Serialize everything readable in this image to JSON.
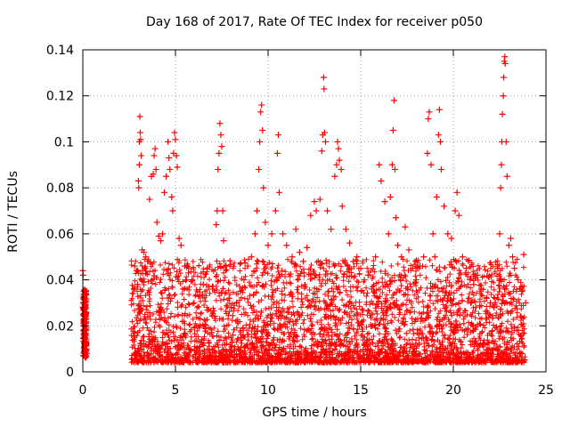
{
  "chart_data": {
    "type": "scatter",
    "title": "Day 168 of 2017, Rate Of TEC Index for receiver p050",
    "xlabel": "GPS time / hours",
    "ylabel": "ROTI / TECUs",
    "xlim": [
      0,
      25
    ],
    "ylim": [
      0,
      0.14
    ],
    "x_ticks": [
      0,
      5,
      10,
      15,
      20,
      25
    ],
    "y_ticks": [
      0,
      0.02,
      0.04,
      0.06,
      0.08,
      0.1,
      0.12,
      0.14
    ],
    "x_tick_labels": [
      "0",
      "5",
      "10",
      "15",
      "20",
      "25"
    ],
    "y_tick_labels": [
      "0",
      "0.02",
      "0.04",
      "0.06",
      "0.08",
      "0.1",
      "0.12",
      "0.14"
    ],
    "grid": true,
    "marker": "+",
    "series": [
      {
        "name": "p050 ROTI",
        "color": "#ff0000",
        "points": [
          [
            0.0,
            0.044
          ],
          [
            0.02,
            0.042
          ],
          [
            0.05,
            0.035
          ],
          [
            0.08,
            0.03
          ],
          [
            0.1,
            0.024
          ],
          [
            0.12,
            0.02
          ],
          [
            0.15,
            0.016
          ],
          [
            0.18,
            0.012
          ],
          [
            0.2,
            0.01
          ],
          [
            0.22,
            0.008
          ],
          [
            0.05,
            0.015
          ],
          [
            0.1,
            0.018
          ],
          [
            0.15,
            0.025
          ],
          [
            0.2,
            0.019
          ],
          [
            0.0,
            0.028
          ],
          [
            0.03,
            0.021
          ],
          [
            2.8,
            0.046
          ],
          [
            2.9,
            0.044
          ],
          [
            2.95,
            0.038
          ],
          [
            3.0,
            0.083
          ],
          [
            3.02,
            0.08
          ],
          [
            3.05,
            0.09
          ],
          [
            3.05,
            0.1
          ],
          [
            3.08,
            0.111
          ],
          [
            3.1,
            0.104
          ],
          [
            3.12,
            0.101
          ],
          [
            3.15,
            0.094
          ],
          [
            3.2,
            0.053
          ],
          [
            3.3,
            0.052
          ],
          [
            3.4,
            0.05
          ],
          [
            3.5,
            0.048
          ],
          [
            3.6,
            0.075
          ],
          [
            3.7,
            0.085
          ],
          [
            3.8,
            0.086
          ],
          [
            3.85,
            0.094
          ],
          [
            3.9,
            0.097
          ],
          [
            3.95,
            0.088
          ],
          [
            4.0,
            0.065
          ],
          [
            4.1,
            0.059
          ],
          [
            4.2,
            0.057
          ],
          [
            4.3,
            0.06
          ],
          [
            4.4,
            0.078
          ],
          [
            4.5,
            0.085
          ],
          [
            4.6,
            0.1
          ],
          [
            4.65,
            0.093
          ],
          [
            4.7,
            0.088
          ],
          [
            4.8,
            0.076
          ],
          [
            4.85,
            0.07
          ],
          [
            4.9,
            0.095
          ],
          [
            4.95,
            0.104
          ],
          [
            5.0,
            0.101
          ],
          [
            5.05,
            0.094
          ],
          [
            5.1,
            0.089
          ],
          [
            5.2,
            0.058
          ],
          [
            5.3,
            0.055
          ],
          [
            5.5,
            0.046
          ],
          [
            5.7,
            0.043
          ],
          [
            5.9,
            0.04
          ],
          [
            6.0,
            0.03
          ],
          [
            6.3,
            0.033
          ],
          [
            6.5,
            0.038
          ],
          [
            6.8,
            0.037
          ],
          [
            7.0,
            0.036
          ],
          [
            7.2,
            0.064
          ],
          [
            7.25,
            0.07
          ],
          [
            7.3,
            0.088
          ],
          [
            7.35,
            0.095
          ],
          [
            7.4,
            0.108
          ],
          [
            7.45,
            0.103
          ],
          [
            7.5,
            0.098
          ],
          [
            7.55,
            0.07
          ],
          [
            7.6,
            0.057
          ],
          [
            7.7,
            0.046
          ],
          [
            7.9,
            0.032
          ],
          [
            8.0,
            0.028
          ],
          [
            8.1,
            0.016
          ],
          [
            8.3,
            0.03
          ],
          [
            8.5,
            0.035
          ],
          [
            8.7,
            0.04
          ],
          [
            8.9,
            0.046
          ],
          [
            9.1,
            0.05
          ],
          [
            9.3,
            0.06
          ],
          [
            9.4,
            0.07
          ],
          [
            9.5,
            0.088
          ],
          [
            9.55,
            0.1
          ],
          [
            9.6,
            0.113
          ],
          [
            9.65,
            0.116
          ],
          [
            9.7,
            0.105
          ],
          [
            9.75,
            0.08
          ],
          [
            9.85,
            0.065
          ],
          [
            10.0,
            0.055
          ],
          [
            10.2,
            0.06
          ],
          [
            10.4,
            0.07
          ],
          [
            10.5,
            0.095
          ],
          [
            10.55,
            0.103
          ],
          [
            10.6,
            0.078
          ],
          [
            10.8,
            0.06
          ],
          [
            11.0,
            0.055
          ],
          [
            11.3,
            0.05
          ],
          [
            11.5,
            0.062
          ],
          [
            11.7,
            0.052
          ],
          [
            11.9,
            0.048
          ],
          [
            12.1,
            0.054
          ],
          [
            12.3,
            0.068
          ],
          [
            12.5,
            0.074
          ],
          [
            12.6,
            0.07
          ],
          [
            12.8,
            0.075
          ],
          [
            12.9,
            0.096
          ],
          [
            12.95,
            0.103
          ],
          [
            13.0,
            0.128
          ],
          [
            13.02,
            0.123
          ],
          [
            13.05,
            0.104
          ],
          [
            13.1,
            0.1
          ],
          [
            13.2,
            0.07
          ],
          [
            13.4,
            0.062
          ],
          [
            13.6,
            0.085
          ],
          [
            13.7,
            0.09
          ],
          [
            13.75,
            0.1
          ],
          [
            13.8,
            0.097
          ],
          [
            13.85,
            0.092
          ],
          [
            13.95,
            0.088
          ],
          [
            14.0,
            0.072
          ],
          [
            14.2,
            0.062
          ],
          [
            14.4,
            0.056
          ],
          [
            14.6,
            0.048
          ],
          [
            14.8,
            0.05
          ],
          [
            15.0,
            0.045
          ],
          [
            15.2,
            0.04
          ],
          [
            15.4,
            0.042
          ],
          [
            15.6,
            0.036
          ],
          [
            15.8,
            0.05
          ],
          [
            16.0,
            0.09
          ],
          [
            16.1,
            0.083
          ],
          [
            16.3,
            0.074
          ],
          [
            16.5,
            0.06
          ],
          [
            16.6,
            0.076
          ],
          [
            16.7,
            0.09
          ],
          [
            16.75,
            0.105
          ],
          [
            16.8,
            0.118
          ],
          [
            16.85,
            0.088
          ],
          [
            16.9,
            0.067
          ],
          [
            17.0,
            0.055
          ],
          [
            17.2,
            0.05
          ],
          [
            17.4,
            0.063
          ],
          [
            17.6,
            0.053
          ],
          [
            17.8,
            0.045
          ],
          [
            18.0,
            0.04
          ],
          [
            18.2,
            0.046
          ],
          [
            18.4,
            0.05
          ],
          [
            18.6,
            0.095
          ],
          [
            18.65,
            0.11
          ],
          [
            18.7,
            0.113
          ],
          [
            18.8,
            0.09
          ],
          [
            18.9,
            0.06
          ],
          [
            19.0,
            0.05
          ],
          [
            19.1,
            0.076
          ],
          [
            19.2,
            0.103
          ],
          [
            19.25,
            0.114
          ],
          [
            19.3,
            0.1
          ],
          [
            19.35,
            0.088
          ],
          [
            19.5,
            0.072
          ],
          [
            19.7,
            0.06
          ],
          [
            19.9,
            0.058
          ],
          [
            20.1,
            0.07
          ],
          [
            20.2,
            0.078
          ],
          [
            20.3,
            0.068
          ],
          [
            20.5,
            0.05
          ],
          [
            20.7,
            0.045
          ],
          [
            20.9,
            0.04
          ],
          [
            21.1,
            0.038
          ],
          [
            21.3,
            0.042
          ],
          [
            21.5,
            0.036
          ],
          [
            21.8,
            0.032
          ],
          [
            22.0,
            0.03
          ],
          [
            22.2,
            0.028
          ],
          [
            22.4,
            0.045
          ],
          [
            22.5,
            0.06
          ],
          [
            22.55,
            0.08
          ],
          [
            22.6,
            0.09
          ],
          [
            22.62,
            0.1
          ],
          [
            22.65,
            0.112
          ],
          [
            22.7,
            0.12
          ],
          [
            22.72,
            0.128
          ],
          [
            22.75,
            0.135
          ],
          [
            22.78,
            0.137
          ],
          [
            22.8,
            0.134
          ],
          [
            22.85,
            0.1
          ],
          [
            22.9,
            0.085
          ],
          [
            23.0,
            0.055
          ],
          [
            23.1,
            0.058
          ],
          [
            23.2,
            0.05
          ],
          [
            23.3,
            0.045
          ],
          [
            23.5,
            0.04
          ],
          [
            23.7,
            0.035
          ],
          [
            23.8,
            0.051
          ],
          [
            23.9,
            0.03
          ]
        ]
      }
    ]
  }
}
